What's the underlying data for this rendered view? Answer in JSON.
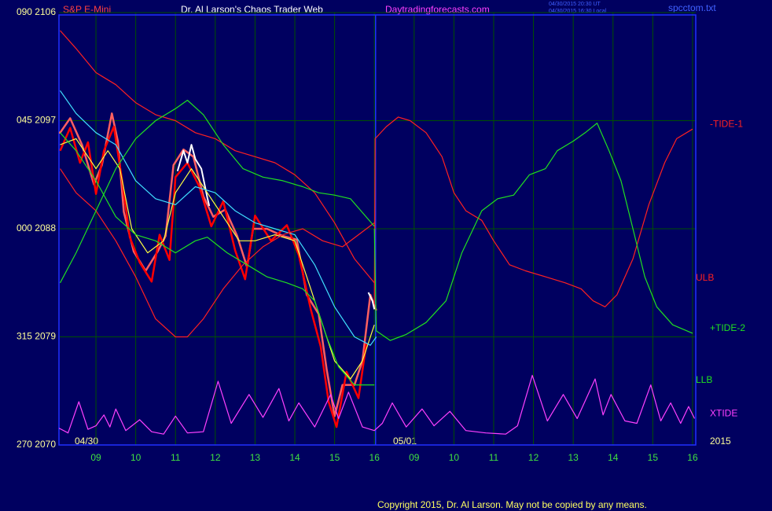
{
  "chart_data": {
    "type": "line",
    "symbol": "S&P E-Mini",
    "title": "Dr. Al Larson's Chaos Trader Web",
    "website": "Daytradingforecasts.com",
    "timestamps": [
      "04/30/2015 20:30 UT",
      "04/30/2015 16:30 Local"
    ],
    "filename": "spcctom.txt",
    "copyright": "Copyright 2015, Dr. Al Larson. May not be copied by any means.",
    "annotations": [
      "04/30",
      "05/01",
      "2015"
    ],
    "xlim": [
      8.07,
      24.08
    ],
    "xticks": [
      {
        "value": 9,
        "label": "09"
      },
      {
        "value": 10,
        "label": "10"
      },
      11,
      12,
      13,
      14,
      15,
      16,
      {
        "value": 17,
        "label": "09"
      },
      {
        "value": 18,
        "label": "10"
      },
      {
        "value": 19,
        "label": "11"
      },
      {
        "value": 20,
        "label": "12"
      },
      {
        "value": 21,
        "label": "13"
      },
      {
        "value": 22,
        "label": "14"
      },
      {
        "value": 23,
        "label": "15"
      },
      {
        "value": 24,
        "label": "16"
      }
    ],
    "ylim": [
      2070,
      2106
    ],
    "yticks": [
      {
        "value": 2106,
        "label": "090 2106"
      },
      {
        "value": 2097,
        "label": "045 2097"
      },
      {
        "value": 2088,
        "label": "000 2088"
      },
      {
        "value": 2079,
        "label": "315 2079"
      },
      {
        "value": 2070,
        "label": "270 2070"
      }
    ],
    "grid": true,
    "divider_x": 16.03,
    "series": [
      {
        "color": "#ff6060",
        "x": [
          8.07,
          8.1,
          8.35,
          8.65,
          8.95,
          9.15,
          9.4,
          9.55,
          9.7,
          9.95,
          10.25,
          10.55,
          10.75,
          10.95,
          11.2,
          11.45,
          11.7,
          11.95,
          12.25,
          12.55,
          12.8,
          12.95,
          13.3,
          13.7,
          14.05,
          14.3,
          14.6,
          14.8,
          15.0,
          15.2,
          15.5,
          15.7,
          15.9,
          16.05
        ],
        "values": [
          2096,
          2096,
          2097.2,
          2095,
          2091.7,
          2093.3,
          2097.6,
          2095.3,
          2089.4,
          2086.1,
          2084.5,
          2086.1,
          2087.4,
          2093.3,
          2094.6,
          2094,
          2090.7,
          2089,
          2089.6,
          2087.4,
          2084.8,
          2088,
          2088,
          2087.4,
          2087.1,
          2082.5,
          2080.9,
          2076.3,
          2072.4,
          2075,
          2075,
          2077,
          2082.5,
          2081.2
        ]
      },
      {
        "color": "#ff0000",
        "x": [
          8.1,
          8.35,
          8.6,
          8.8,
          9.0,
          9.2,
          9.45,
          9.65,
          9.85,
          10.1,
          10.4,
          10.6,
          10.85,
          11.0,
          11.3,
          11.6,
          11.9,
          12.2,
          12.5,
          12.75,
          13.0,
          13.4,
          13.8,
          14.1,
          14.4,
          14.65,
          14.85,
          15.05,
          15.3,
          15.6,
          15.8
        ],
        "values": [
          2094.5,
          2096.4,
          2093.5,
          2095.2,
          2090.9,
          2094.5,
          2096.5,
          2092.2,
          2087.3,
          2085.2,
          2083.6,
          2087.5,
          2085.4,
          2092.3,
          2093.5,
          2091.5,
          2088.2,
          2090.3,
          2086.2,
          2083.8,
          2089.1,
          2087,
          2088.3,
          2085.8,
          2081.3,
          2078.2,
          2073.6,
          2071.5,
          2076.1,
          2073.9,
          2078.5
        ]
      },
      {
        "color": "#ffffff",
        "x": [
          11.05,
          11.2,
          11.3,
          11.4,
          11.5,
          11.65,
          11.8,
          11.85,
          13.8,
          15.85,
          15.95,
          16.0
        ],
        "values": [
          2092.8,
          2094.5,
          2093.5,
          2095,
          2093.8,
          2093,
          2090.6,
          2089.9,
          null,
          2082.7,
          2082,
          2081.3
        ]
      },
      {
        "color": "#ffff40",
        "x": [
          8.1,
          8.5,
          9.0,
          9.3,
          9.6,
          9.9,
          10.3,
          10.7,
          11.0,
          11.4,
          11.8,
          12.2,
          12.6,
          13.0,
          13.5,
          14.0,
          14.3,
          14.7,
          15.0,
          15.4,
          15.7,
          16.0
        ],
        "values": [
          2095,
          2095.5,
          2093,
          2094.5,
          2093,
          2088,
          2086,
          2087,
          2091,
          2093,
          2091,
          2089,
          2087,
          2087,
          2087.5,
          2087,
          2084,
          2080,
          2077,
          2075.5,
          2077,
          2080
        ]
      },
      {
        "color": "#40e0ff",
        "x": [
          8.1,
          8.5,
          9.0,
          9.5,
          10.0,
          10.5,
          11.0,
          11.5,
          12.0,
          12.5,
          13.0,
          13.5,
          14.0,
          14.5,
          15.0,
          15.5,
          15.9,
          16.05
        ],
        "values": [
          2099.5,
          2097.6,
          2096,
          2095,
          2092,
          2090.5,
          2090,
          2091.5,
          2091,
          2089.5,
          2088.5,
          2088,
          2087.5,
          2085,
          2081.5,
          2079,
          2078.3,
          2079
        ]
      },
      {
        "name": "ULB",
        "color": "#ff2020",
        "x": [
          8.1,
          8.5,
          9.0,
          9.5,
          10.0,
          10.5,
          11.0,
          11.5,
          12.0,
          12.5,
          13.0,
          13.5,
          14.0,
          14.5,
          15.0,
          15.5,
          16.0
        ],
        "values": [
          2104.5,
          2103,
          2101,
          2100,
          2098.5,
          2097.5,
          2097,
          2096,
          2095.5,
          2094.5,
          2094,
          2093.5,
          2092.5,
          2091,
          2088.5,
          2085.5,
          2083.5
        ]
      },
      {
        "color": "#ff2020",
        "x": [
          8.1,
          8.5,
          9.0,
          9.5,
          10.0,
          10.5,
          11.0,
          11.3,
          11.7,
          12.2,
          12.7,
          13.2,
          13.7,
          14.2,
          14.7,
          15.2,
          15.6,
          16.0
        ],
        "values": [
          2093,
          2091,
          2089.5,
          2087,
          2084,
          2080.5,
          2079,
          2079,
          2080.5,
          2083,
          2085,
          2086.5,
          2087.5,
          2088,
          2087,
          2086.5,
          2087.5,
          2088.5
        ]
      },
      {
        "color": "#20e020",
        "x": [
          8.1,
          8.5,
          9.0,
          9.5,
          10.0,
          10.5,
          11.0,
          11.3,
          11.7,
          12.2,
          12.7,
          13.2,
          13.7,
          14.2,
          14.6,
          15.0,
          15.4,
          16.0
        ],
        "values": [
          2083.5,
          2086,
          2089.5,
          2093,
          2095.5,
          2097,
          2098,
          2098.7,
          2097.5,
          2095,
          2093,
          2092.3,
          2092,
          2091.5,
          2091,
          2090.8,
          2090.5,
          2088.2
        ]
      },
      {
        "name": "LLB",
        "color": "#20e020",
        "x": [
          8.1,
          8.5,
          9.0,
          9.5,
          10.0,
          10.5,
          11.0,
          11.5,
          11.8,
          12.3,
          12.8,
          13.3,
          13.8,
          14.2,
          14.5,
          14.8,
          15.1,
          15.5,
          16.0
        ],
        "values": [
          2096,
          2094.5,
          2092,
          2089,
          2087.5,
          2087,
          2086,
          2087,
          2087.3,
          2086,
          2085,
          2084,
          2083.5,
          2083,
          2082,
          2079,
          2076.5,
          2075,
          2075
        ]
      },
      {
        "name": "-TIDE-1",
        "color": "#ff2020",
        "x": [
          16.0,
          16.02,
          16.3,
          16.6,
          16.9,
          17.3,
          17.7,
          18.0,
          18.3,
          18.7,
          19.0,
          19.4,
          19.8,
          20.3,
          20.8,
          21.2,
          21.5,
          21.8,
          22.1,
          22.5,
          22.9,
          23.3,
          23.6,
          24.0
        ],
        "values": [
          2081.7,
          2095.5,
          2096.5,
          2097.3,
          2097,
          2096,
          2094,
          2091,
          2089.5,
          2088.7,
          2087,
          2085,
          2084.5,
          2084,
          2083.5,
          2083,
          2082,
          2081.5,
          2082.5,
          2085.5,
          2090,
          2093.5,
          2095.5,
          2096.3
        ]
      },
      {
        "name": "+TIDE-2",
        "color": "#20e020",
        "x": [
          16.0,
          16.05,
          16.4,
          16.8,
          17.3,
          17.8,
          18.2,
          18.7,
          19.1,
          19.5,
          19.9,
          20.3,
          20.6,
          21.0,
          21.3,
          21.6,
          21.9,
          22.2,
          22.5,
          22.8,
          23.1,
          23.5,
          24.0
        ],
        "values": [
          2088,
          2079.5,
          2078.7,
          2079.2,
          2080.2,
          2082,
          2086,
          2089.5,
          2090.5,
          2090.8,
          2092.5,
          2093,
          2094.5,
          2095.3,
          2096,
          2096.8,
          2094.5,
          2092,
          2088,
          2084,
          2081.5,
          2080,
          2079.3
        ]
      },
      {
        "name": "XTIDE",
        "color": "#ff40ff",
        "x": [
          8.07,
          8.3,
          8.57,
          8.8,
          9.0,
          9.2,
          9.35,
          9.5,
          9.75,
          10.1,
          10.4,
          10.7,
          11.0,
          11.3,
          11.7,
          12.07,
          12.4,
          12.85,
          13.2,
          13.6,
          13.85,
          14.1,
          14.5,
          14.9,
          15.1,
          15.35,
          15.7,
          16.0,
          16.2,
          16.45,
          16.8,
          17.2,
          17.5,
          17.9,
          18.3,
          18.8,
          19.3,
          19.6,
          19.97,
          20.35,
          20.75,
          21.1,
          21.55,
          21.75,
          21.95,
          22.3,
          22.6,
          22.95,
          23.2,
          23.45,
          23.7,
          23.9,
          24.05
        ],
        "values": [
          2071.4,
          2071,
          2073.6,
          2071.3,
          2071.6,
          2072.5,
          2071.5,
          2073,
          2071.2,
          2072.1,
          2071.1,
          2070.9,
          2072.4,
          2071,
          2071.1,
          2075.3,
          2071.8,
          2074.2,
          2072.3,
          2074.7,
          2072,
          2073.5,
          2071.5,
          2074.2,
          2072.2,
          2074.4,
          2071.5,
          2071.2,
          2071.8,
          2073.5,
          2071.5,
          2073,
          2071.6,
          2072.8,
          2071.2,
          2071,
          2070.9,
          2071.6,
          2075.8,
          2072,
          2074.2,
          2072.2,
          2075.5,
          2072.5,
          2074.2,
          2072,
          2071.8,
          2075,
          2072,
          2073.5,
          2071.8,
          2073.2,
          2072.2
        ]
      }
    ]
  }
}
